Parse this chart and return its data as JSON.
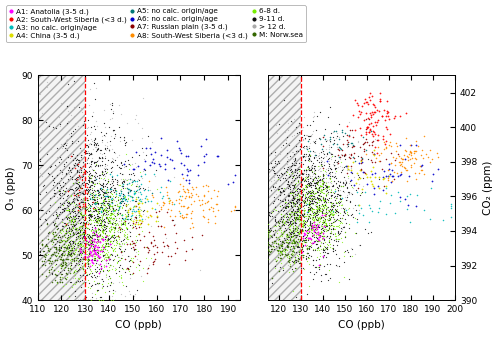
{
  "legend_entries": [
    {
      "label": "A1: Anatolia (3-5 d.)",
      "color": "#FF00FF"
    },
    {
      "label": "A2: South-West Siberia (<3 d.)",
      "color": "#FF0000"
    },
    {
      "label": "A3: no calc. origin/age",
      "color": "#00BBBB"
    },
    {
      "label": "A4: China (3-5 d.)",
      "color": "#DDDD00"
    },
    {
      "label": "A5: no calc. origin/age",
      "color": "#007777"
    },
    {
      "label": "A6: no calc. origin/age",
      "color": "#0000CC"
    },
    {
      "label": "A7: Russian plain (3-5 d.)",
      "color": "#8B0000"
    },
    {
      "label": "A8: South-West Siberia (<3 d.)",
      "color": "#FF8C00"
    },
    {
      "label": "6-8 d.",
      "color": "#77EE00"
    },
    {
      "label": "9-11 d.",
      "color": "#111111"
    },
    {
      "label": "> 12 d.",
      "color": "#AAAAAA"
    },
    {
      "label": "M: Norw.sea",
      "color": "#336600"
    }
  ],
  "left_plot": {
    "xlabel": "CO (ppb)",
    "ylabel": "O₃ (ppb)",
    "xlim": [
      110,
      195
    ],
    "ylim": [
      40,
      90
    ],
    "xticks": [
      110,
      120,
      130,
      140,
      150,
      160,
      170,
      180,
      190
    ],
    "yticks": [
      40,
      50,
      60,
      70,
      80,
      90
    ],
    "dashed_line_x": 130,
    "hatch_x_max": 130
  },
  "right_plot": {
    "xlabel": "CO (ppb)",
    "ylabel": "CO₂ (ppm)",
    "xlim": [
      115,
      200
    ],
    "ylim": [
      390,
      403
    ],
    "xticks": [
      120,
      130,
      140,
      150,
      160,
      170,
      180,
      190,
      200
    ],
    "yticks": [
      390,
      392,
      394,
      396,
      398,
      400,
      402
    ],
    "dashed_line_x": 130,
    "hatch_x_max": 130
  },
  "bg_color": "#FFFFFF",
  "dashed_line_color": "#FF0000",
  "seed": 42
}
